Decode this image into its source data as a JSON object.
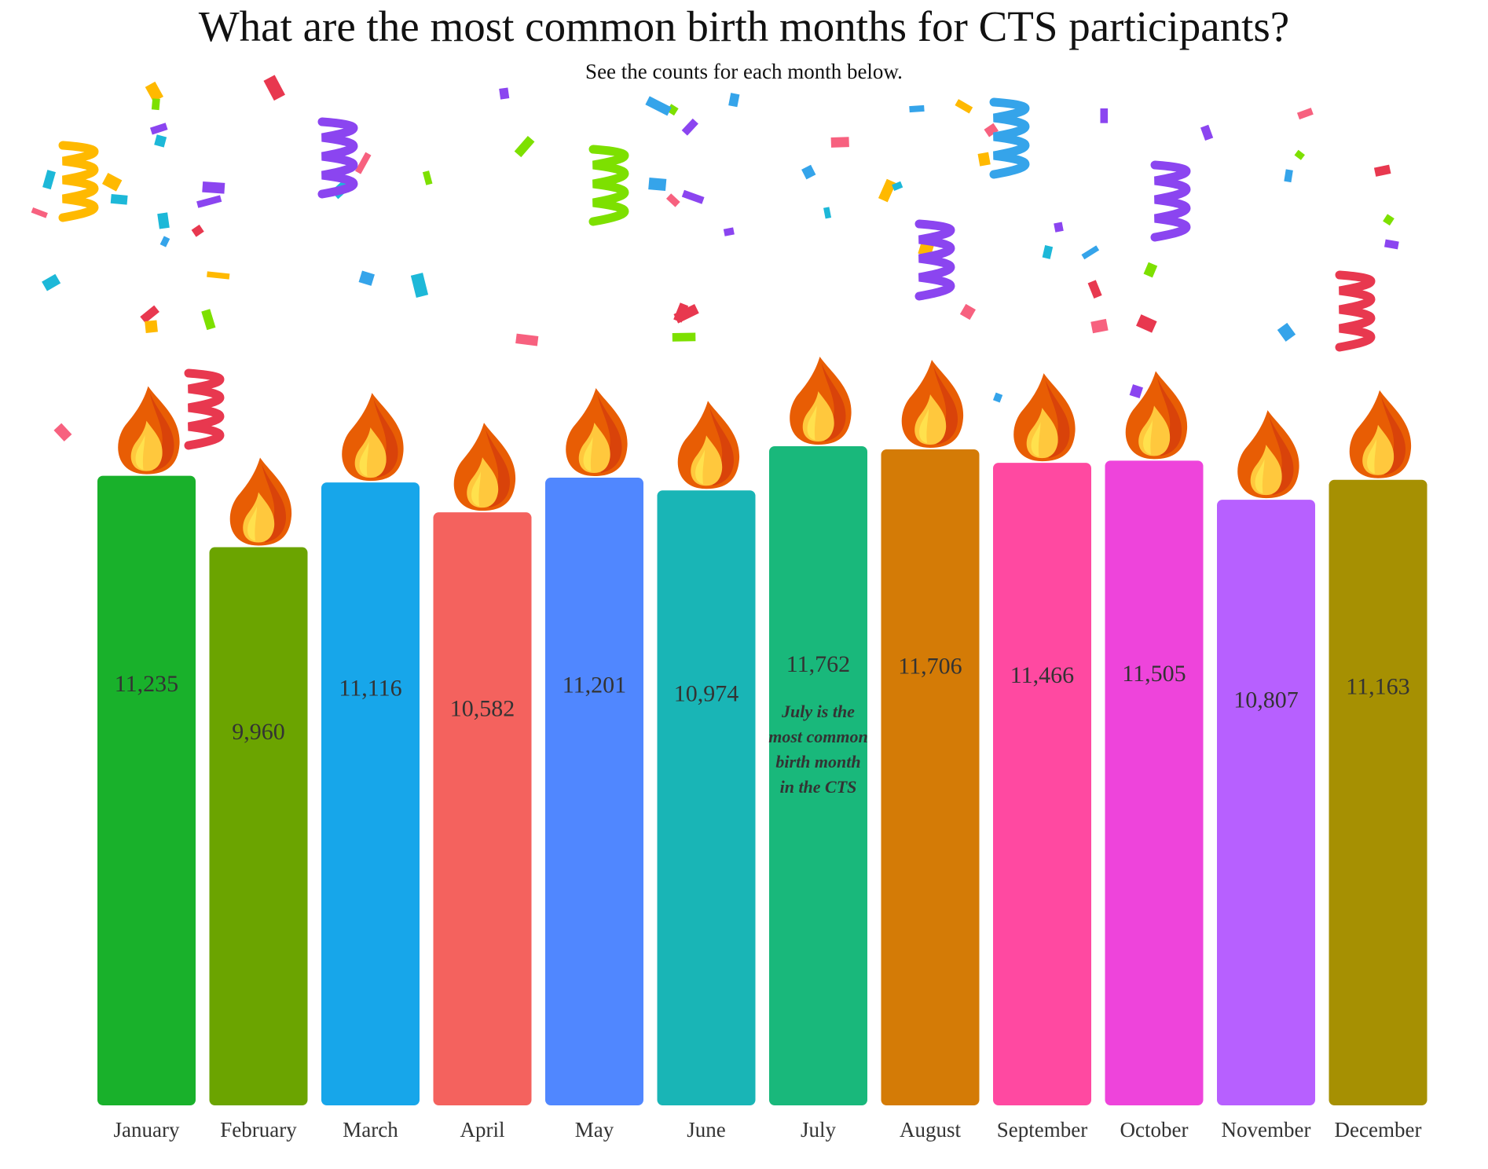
{
  "chart_data": {
    "type": "bar",
    "title": "What are the most common birth months for CTS participants?",
    "subtitle": "See the counts for each month below.",
    "xlabel": "",
    "ylabel": "",
    "ylim": [
      0,
      11762
    ],
    "grid": false,
    "legend": "none",
    "categories": [
      "January",
      "February",
      "March",
      "April",
      "May",
      "June",
      "July",
      "August",
      "September",
      "October",
      "November",
      "December"
    ],
    "values": [
      11235,
      9960,
      11116,
      10582,
      11201,
      10974,
      11762,
      11706,
      11466,
      11505,
      10807,
      11163
    ],
    "value_labels": [
      "11,235",
      "9,960",
      "11,116",
      "10,582",
      "11,201",
      "10,974",
      "11,762",
      "11,706",
      "11,466",
      "11,505",
      "10,807",
      "11,163"
    ],
    "colors": [
      "#19B12B",
      "#6BA400",
      "#17A6EA",
      "#F4625E",
      "#5087FF",
      "#19B5B6",
      "#19B87B",
      "#D47B06",
      "#FF49A1",
      "#EE44DB",
      "#B760FF",
      "#A69002"
    ],
    "annotation": {
      "category": "July",
      "lines": [
        "July is the",
        "most common",
        "birth month",
        "in the CTS"
      ]
    },
    "decorations": {
      "candle_flame": true,
      "confetti": true,
      "flame_colors": [
        "#E85D04",
        "#D9430A",
        "#FFC83D",
        "#FFE14D"
      ],
      "confetti_colors": [
        "#F7617F",
        "#FFB900",
        "#35A4EA",
        "#8B45F0",
        "#7DE000",
        "#E8384F",
        "#1DB8D8"
      ]
    }
  }
}
